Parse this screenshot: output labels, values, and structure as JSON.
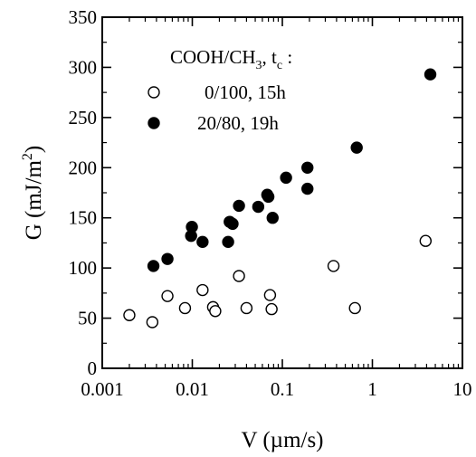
{
  "chart_data": {
    "type": "scatter",
    "title": "",
    "xlabel": "V (µm/s)",
    "ylabel_main": "G (mJ/m",
    "ylabel_sup": "2",
    "ylabel_end": ")",
    "x_scale": "log",
    "xlim": [
      0.001,
      10
    ],
    "ylim": [
      0,
      350
    ],
    "x_ticks": [
      0.001,
      0.01,
      0.1,
      1,
      10
    ],
    "x_tick_labels": [
      "0.001",
      "0.01",
      "0.1",
      "1",
      "10"
    ],
    "y_ticks": [
      0,
      50,
      100,
      150,
      200,
      250,
      300,
      350
    ],
    "y_tick_labels": [
      "0",
      "50",
      "100",
      "150",
      "200",
      "250",
      "300",
      "350"
    ],
    "grid": false,
    "legend": {
      "placement": "top-left",
      "header_main": "COOH/CH",
      "header_sub1": "3",
      "header_mid": ", t",
      "header_sub2": "c",
      "header_end": " :"
    },
    "series": [
      {
        "name": "0/100, 15h",
        "marker": "open-circle",
        "points": [
          [
            0.002,
            53
          ],
          [
            0.0036,
            46
          ],
          [
            0.0053,
            72
          ],
          [
            0.0083,
            60
          ],
          [
            0.013,
            78
          ],
          [
            0.017,
            61
          ],
          [
            0.018,
            57
          ],
          [
            0.033,
            92
          ],
          [
            0.04,
            60
          ],
          [
            0.073,
            73
          ],
          [
            0.076,
            59
          ],
          [
            0.37,
            102
          ],
          [
            0.64,
            60
          ],
          [
            3.9,
            127
          ]
        ]
      },
      {
        "name": "20/80, 19h",
        "marker": "filled-circle",
        "points": [
          [
            0.0037,
            102
          ],
          [
            0.0053,
            109
          ],
          [
            0.0097,
            132
          ],
          [
            0.0099,
            141
          ],
          [
            0.013,
            126
          ],
          [
            0.025,
            126
          ],
          [
            0.026,
            146
          ],
          [
            0.028,
            144
          ],
          [
            0.033,
            162
          ],
          [
            0.054,
            161
          ],
          [
            0.068,
            173
          ],
          [
            0.07,
            171
          ],
          [
            0.078,
            150
          ],
          [
            0.11,
            190
          ],
          [
            0.19,
            200
          ],
          [
            0.19,
            179
          ],
          [
            0.67,
            220
          ],
          [
            4.4,
            293
          ]
        ]
      }
    ]
  }
}
